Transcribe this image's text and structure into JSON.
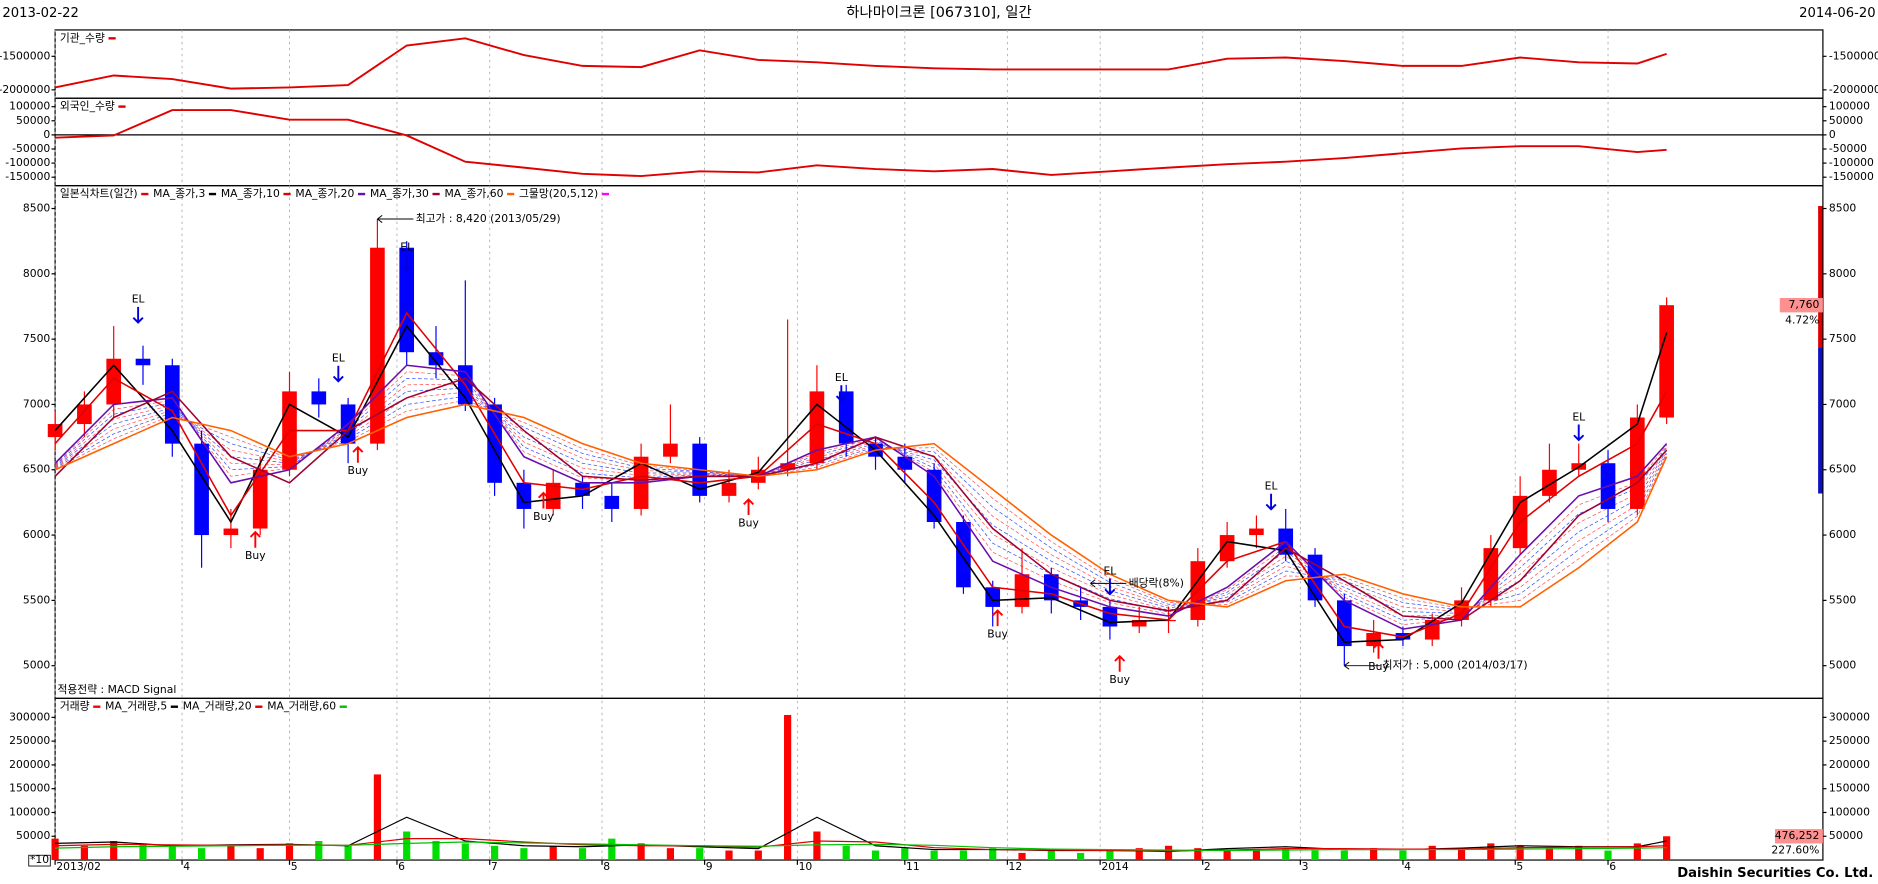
{
  "header": {
    "start": "2013-02-22",
    "title": "하나마이크론 [067310], 일간",
    "end": "2014-06-20"
  },
  "footer": "Daishin Securities Co. Ltd.",
  "chart_data": [
    {
      "type": "line",
      "x": [
        0,
        12,
        24,
        36,
        48,
        60,
        72,
        84,
        96,
        108,
        120,
        132,
        144,
        156,
        168,
        180,
        192,
        204,
        216,
        228,
        240,
        252,
        264,
        276,
        288,
        300,
        312,
        324,
        330
      ],
      "series": [
        {
          "name": "기관_수량",
          "color": "#e00000",
          "values": [
            -1964000,
            -1786000,
            -1839000,
            -1982000,
            -1964000,
            -1929000,
            -1339000,
            -1232000,
            -1482000,
            -1643000,
            -1661000,
            -1411000,
            -1554000,
            -1589000,
            -1643000,
            -1679000,
            -1696000,
            -1696000,
            -1696000,
            -1696000,
            -1536000,
            -1518000,
            -1571000,
            -1643000,
            -1643000,
            -1518000,
            -1589000,
            -1607000,
            -1464000
          ]
        }
      ],
      "ylim": [
        -2125000,
        -1107000
      ],
      "yticks": [
        -1500000,
        -2000000
      ]
    },
    {
      "type": "line",
      "x": [
        0,
        12,
        24,
        36,
        48,
        60,
        72,
        84,
        96,
        108,
        120,
        132,
        144,
        156,
        168,
        180,
        192,
        204,
        216,
        228,
        240,
        252,
        264,
        276,
        288,
        300,
        312,
        324,
        330
      ],
      "series": [
        {
          "name": "외국인_수량",
          "color": "#e00000",
          "values": [
            -10000,
            -2000,
            88000,
            88000,
            54000,
            54000,
            -2000,
            -95000,
            -116000,
            -138000,
            -146000,
            -129000,
            -133000,
            -108000,
            -121000,
            -129000,
            -121000,
            -142000,
            -129000,
            -116000,
            -104000,
            -95000,
            -82000,
            -65000,
            -48000,
            -40000,
            -40000,
            -61000,
            -53000
          ]
        }
      ],
      "ylim": [
        -180000,
        130000
      ],
      "yticks": [
        100000,
        50000,
        0,
        -50000,
        -100000,
        -150000
      ]
    },
    {
      "type": "candlestick",
      "candles": {
        "name": "일본식차트(일간)",
        "color": "#e00000",
        "color_up": "#ff0000",
        "color_down": "#0000ff",
        "x": [
          0,
          6,
          12,
          18,
          24,
          30,
          36,
          42,
          48,
          54,
          60,
          66,
          72,
          78,
          84,
          90,
          96,
          102,
          108,
          114,
          120,
          126,
          132,
          138,
          144,
          150,
          156,
          162,
          168,
          174,
          180,
          186,
          192,
          198,
          204,
          210,
          216,
          222,
          228,
          234,
          240,
          246,
          252,
          258,
          264,
          270,
          276,
          282,
          288,
          294,
          300,
          306,
          312,
          318,
          324,
          330
        ],
        "open": [
          6750,
          6850,
          7000,
          7350,
          7300,
          6700,
          6000,
          6050,
          6500,
          7100,
          7000,
          6700,
          8200,
          7400,
          7300,
          7000,
          6400,
          6200,
          6400,
          6300,
          6200,
          6600,
          6700,
          6300,
          6400,
          6500,
          6550,
          7100,
          6700,
          6600,
          6500,
          6100,
          5600,
          5450,
          5700,
          5500,
          5450,
          5300,
          5350,
          5350,
          5800,
          6000,
          6050,
          5850,
          5500,
          5150,
          5250,
          5200,
          5350,
          5500,
          5900,
          6300,
          6500,
          6550,
          6200,
          6900
        ],
        "high": [
          6950,
          7100,
          7600,
          7450,
          7350,
          6800,
          6200,
          6600,
          7250,
          7200,
          7050,
          8420,
          8250,
          7600,
          7950,
          7050,
          6500,
          6500,
          6450,
          6400,
          6700,
          7000,
          6750,
          6500,
          6600,
          7650,
          7300,
          7150,
          6750,
          6700,
          6550,
          6150,
          5650,
          5900,
          5750,
          5600,
          5500,
          5450,
          5450,
          5900,
          6100,
          6150,
          6200,
          5900,
          5550,
          5350,
          5300,
          5400,
          5600,
          6000,
          6450,
          6700,
          6700,
          6650,
          7000,
          7820
        ],
        "low": [
          6650,
          6750,
          6900,
          7150,
          6600,
          5750,
          5900,
          6000,
          6450,
          6900,
          6550,
          6650,
          7300,
          7200,
          6950,
          6300,
          6050,
          6150,
          6200,
          6100,
          6150,
          6550,
          6250,
          6250,
          6350,
          6450,
          6500,
          6600,
          6500,
          6400,
          6050,
          5550,
          5300,
          5400,
          5400,
          5350,
          5200,
          5250,
          5250,
          5300,
          5750,
          5900,
          5800,
          5450,
          5000,
          5100,
          5150,
          5150,
          5300,
          5450,
          5850,
          6250,
          6450,
          6100,
          6150,
          6850
        ],
        "close": [
          6850,
          7000,
          7350,
          7300,
          6700,
          6000,
          6050,
          6500,
          7100,
          7000,
          6700,
          8200,
          7400,
          7300,
          7000,
          6400,
          6200,
          6400,
          6300,
          6200,
          6600,
          6700,
          6300,
          6400,
          6500,
          6550,
          7100,
          6700,
          6600,
          6500,
          6100,
          5600,
          5450,
          5700,
          5500,
          5450,
          5300,
          5350,
          5350,
          5800,
          6000,
          6050,
          5850,
          5500,
          5150,
          5250,
          5200,
          5350,
          5500,
          5900,
          6300,
          6500,
          6550,
          6200,
          6900,
          7760
        ]
      },
      "x": [
        0,
        12,
        24,
        36,
        48,
        60,
        72,
        84,
        96,
        108,
        120,
        132,
        144,
        156,
        168,
        180,
        192,
        204,
        216,
        228,
        240,
        252,
        264,
        276,
        288,
        300,
        312,
        324,
        330
      ],
      "series": [
        {
          "name": "MA_종가,3",
          "color": "#000000",
          "values": [
            6800,
            7300,
            6800,
            6100,
            7000,
            6750,
            7600,
            7050,
            6250,
            6300,
            6550,
            6350,
            6480,
            7000,
            6650,
            6150,
            5500,
            5520,
            5330,
            5350,
            5950,
            5880,
            5180,
            5200,
            5480,
            6250,
            6520,
            6850,
            7550
          ]
        },
        {
          "name": "MA_종가,10",
          "color": "#e00000",
          "values": [
            6700,
            7200,
            6950,
            6150,
            6800,
            6800,
            7700,
            7150,
            6400,
            6350,
            6450,
            6400,
            6450,
            6850,
            6700,
            6250,
            5600,
            5550,
            5400,
            5350,
            5800,
            5950,
            5300,
            5220,
            5400,
            6100,
            6450,
            6700,
            7100
          ]
        },
        {
          "name": "MA_종가,20",
          "color": "#6a0dad",
          "values": [
            6550,
            7000,
            7050,
            6400,
            6500,
            6850,
            7300,
            7250,
            6600,
            6400,
            6400,
            6450,
            6450,
            6650,
            6750,
            6450,
            5800,
            5600,
            5450,
            5380,
            5600,
            5950,
            5500,
            5280,
            5350,
            5850,
            6300,
            6450,
            6700
          ]
        },
        {
          "name": "MA_종가,30",
          "color": "#a00030",
          "values": [
            6450,
            6900,
            7100,
            6600,
            6400,
            6800,
            7050,
            7200,
            6800,
            6450,
            6420,
            6450,
            6450,
            6550,
            6750,
            6600,
            6050,
            5700,
            5500,
            5420,
            5500,
            5900,
            5650,
            5380,
            5350,
            5650,
            6150,
            6400,
            6650
          ]
        },
        {
          "name": "MA_종가,60",
          "color": "#ff6000",
          "values": [
            6500,
            6700,
            6900,
            6800,
            6600,
            6700,
            6900,
            7000,
            6900,
            6700,
            6550,
            6500,
            6450,
            6500,
            6650,
            6700,
            6350,
            6000,
            5700,
            5500,
            5450,
            5650,
            5700,
            5550,
            5450,
            5450,
            5750,
            6100,
            6600
          ]
        }
      ],
      "net": {
        "name": "그물망(20,5,12)",
        "color": "#ff00ff"
      },
      "ylim": [
        4750,
        8675
      ],
      "yticks": [
        8500,
        8000,
        7500,
        7000,
        6500,
        6000,
        5500,
        5000
      ],
      "annotations": [
        {
          "text": "최고가 : 8,420 (2013/05/29)",
          "x": 66,
          "value": 8420,
          "color": "#e00000"
        },
        {
          "text": "최저가 : 5,000 (2014/03/17)",
          "x": 264,
          "value": 5000,
          "color": "#0000e0"
        },
        {
          "text": "배당락(8%)",
          "x": 212,
          "value": 5630,
          "color": "#000000"
        }
      ],
      "signals": [
        {
          "label": "EL",
          "x": 17,
          "value": 7600
        },
        {
          "label": "Buy",
          "x": 41,
          "value": 6050
        },
        {
          "label": "EL",
          "x": 58,
          "value": 7150
        },
        {
          "label": "Buy",
          "x": 62,
          "value": 6700
        },
        {
          "label": "EL",
          "x": 72,
          "value": 8000
        },
        {
          "label": "Buy",
          "x": 100,
          "value": 6350
        },
        {
          "label": "Buy",
          "x": 142,
          "value": 6300
        },
        {
          "label": "EL",
          "x": 161,
          "value": 7000
        },
        {
          "label": "Buy",
          "x": 193,
          "value": 5450
        },
        {
          "label": "EL",
          "x": 216,
          "value": 5520
        },
        {
          "label": "Buy",
          "x": 218,
          "value": 5100
        },
        {
          "label": "EL",
          "x": 249,
          "value": 6170
        },
        {
          "label": "Buy",
          "x": 271,
          "value": 5200
        },
        {
          "label": "EL",
          "x": 312,
          "value": 6700
        }
      ],
      "strategy": "적용전략 : MACD Signal",
      "last_label": "7,760",
      "change_label": "4.72%"
    },
    {
      "type": "bar",
      "bars": {
        "name": "거래량",
        "color": "#ff0000",
        "color_up": "#ff0000",
        "color_down": "#00dd00",
        "x": [
          0,
          6,
          12,
          18,
          24,
          30,
          36,
          42,
          48,
          54,
          60,
          66,
          72,
          78,
          84,
          90,
          96,
          102,
          108,
          114,
          120,
          126,
          132,
          138,
          144,
          150,
          156,
          162,
          168,
          174,
          180,
          186,
          192,
          198,
          204,
          210,
          216,
          222,
          228,
          234,
          240,
          246,
          252,
          258,
          264,
          270,
          276,
          282,
          288,
          294,
          300,
          306,
          312,
          318,
          324,
          330
        ],
        "values": [
          45000,
          30000,
          40000,
          35000,
          30000,
          25000,
          30000,
          25000,
          35000,
          40000,
          30000,
          180000,
          60000,
          40000,
          35000,
          30000,
          25000,
          30000,
          25000,
          45000,
          35000,
          25000,
          25000,
          20000,
          20000,
          305000,
          60000,
          30000,
          20000,
          25000,
          20000,
          20000,
          25000,
          15000,
          20000,
          15000,
          20000,
          25000,
          30000,
          25000,
          20000,
          20000,
          25000,
          20000,
          20000,
          25000,
          20000,
          30000,
          25000,
          35000,
          30000,
          25000,
          30000,
          20000,
          35000,
          50000
        ]
      },
      "x": [
        0,
        12,
        24,
        36,
        48,
        60,
        72,
        84,
        96,
        108,
        120,
        132,
        144,
        156,
        168,
        180,
        192,
        204,
        216,
        228,
        240,
        252,
        264,
        276,
        288,
        300,
        312,
        324,
        330
      ],
      "series": [
        {
          "name": "MA_거래량,5",
          "color": "#000000",
          "values": [
            35000,
            38000,
            30000,
            32000,
            33000,
            30000,
            90000,
            40000,
            30000,
            28000,
            32000,
            28000,
            24000,
            90000,
            30000,
            22000,
            22000,
            20000,
            20000,
            18000,
            24000,
            28000,
            22000,
            22000,
            25000,
            30000,
            28000,
            28000,
            40000
          ]
        },
        {
          "name": "MA_거래량,20",
          "color": "#e00000",
          "values": [
            30000,
            33000,
            32000,
            31000,
            32000,
            31000,
            45000,
            45000,
            38000,
            32000,
            30000,
            30000,
            27000,
            40000,
            38000,
            26000,
            22000,
            21000,
            20000,
            19000,
            21000,
            24000,
            24000,
            23000,
            23000,
            26000,
            27000,
            28000,
            30000
          ]
        },
        {
          "name": "MA_거래량,60",
          "color": "#00c000",
          "values": [
            25000,
            28000,
            29000,
            30000,
            31000,
            31000,
            35000,
            38000,
            36000,
            34000,
            32000,
            30000,
            29000,
            32000,
            33000,
            31000,
            26000,
            23000,
            22000,
            21000,
            20000,
            21000,
            22000,
            22000,
            22000,
            23000,
            24000,
            25000,
            26000
          ]
        }
      ],
      "ylim": [
        0,
        340000
      ],
      "yticks": [
        300000,
        250000,
        200000,
        150000,
        100000,
        50000
      ],
      "xlim": [
        0,
        362
      ],
      "xticks": [
        {
          "value": 0,
          "label": "2013/02"
        },
        {
          "value": 26,
          "label": "4"
        },
        {
          "value": 48,
          "label": "5"
        },
        {
          "value": 70,
          "label": "6"
        },
        {
          "value": 89,
          "label": "7"
        },
        {
          "value": 112,
          "label": "8"
        },
        {
          "value": 133,
          "label": "9"
        },
        {
          "value": 152,
          "label": "10"
        },
        {
          "value": 174,
          "label": "11"
        },
        {
          "value": 195,
          "label": "12"
        },
        {
          "value": 214,
          "label": "2014"
        },
        {
          "value": 235,
          "label": "2"
        },
        {
          "value": 255,
          "label": "3"
        },
        {
          "value": 276,
          "label": "4"
        },
        {
          "value": 299,
          "label": "5"
        },
        {
          "value": 318,
          "label": "6"
        }
      ],
      "grid": true,
      "last_label": "476,252",
      "change_label": "227.60%",
      "scale_label": "*10"
    }
  ]
}
